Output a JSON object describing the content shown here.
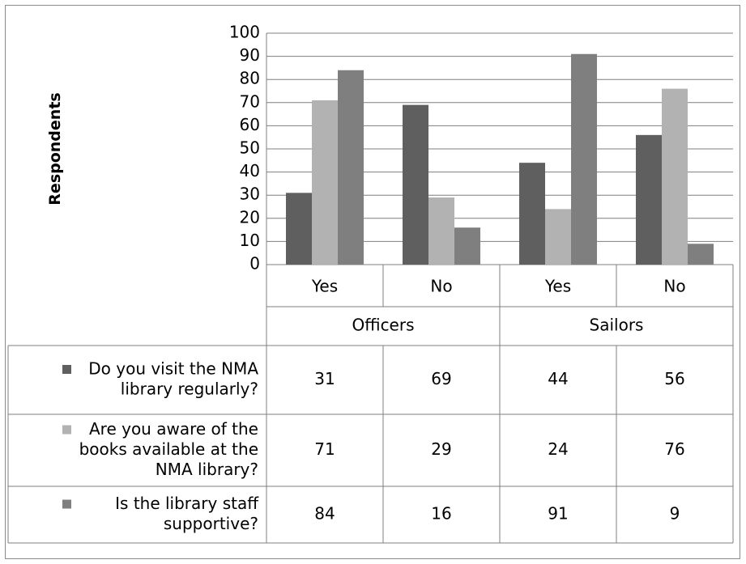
{
  "chart_data": {
    "type": "bar",
    "ylabel": "Respondents",
    "ylim": [
      0,
      100
    ],
    "yticks": [
      0,
      10,
      20,
      30,
      40,
      50,
      60,
      70,
      80,
      90,
      100
    ],
    "grid": true,
    "legend": "data-table-left",
    "groups": [
      {
        "label": "Officers",
        "categories": [
          "Yes",
          "No"
        ]
      },
      {
        "label": "Sailors",
        "categories": [
          "Yes",
          "No"
        ]
      }
    ],
    "categories": [
      "Yes",
      "No",
      "Yes",
      "No"
    ],
    "series": [
      {
        "name": "Do you visit the NMA library regularly?",
        "name_lines": [
          "Do you visit the NMA",
          "library regularly?"
        ],
        "color": "#5f5f5f",
        "values": [
          31,
          69,
          44,
          56
        ]
      },
      {
        "name": "Are you aware of the books available at the NMA library?",
        "name_lines": [
          "Are you aware of the",
          "books available at the",
          "NMA library?"
        ],
        "color": "#b2b2b2",
        "values": [
          71,
          29,
          24,
          76
        ]
      },
      {
        "name": "Is the library staff supportive?",
        "name_lines": [
          "Is the library staff",
          "supportive?"
        ],
        "color": "#7f7f7f",
        "values": [
          84,
          16,
          91,
          9
        ]
      }
    ]
  }
}
